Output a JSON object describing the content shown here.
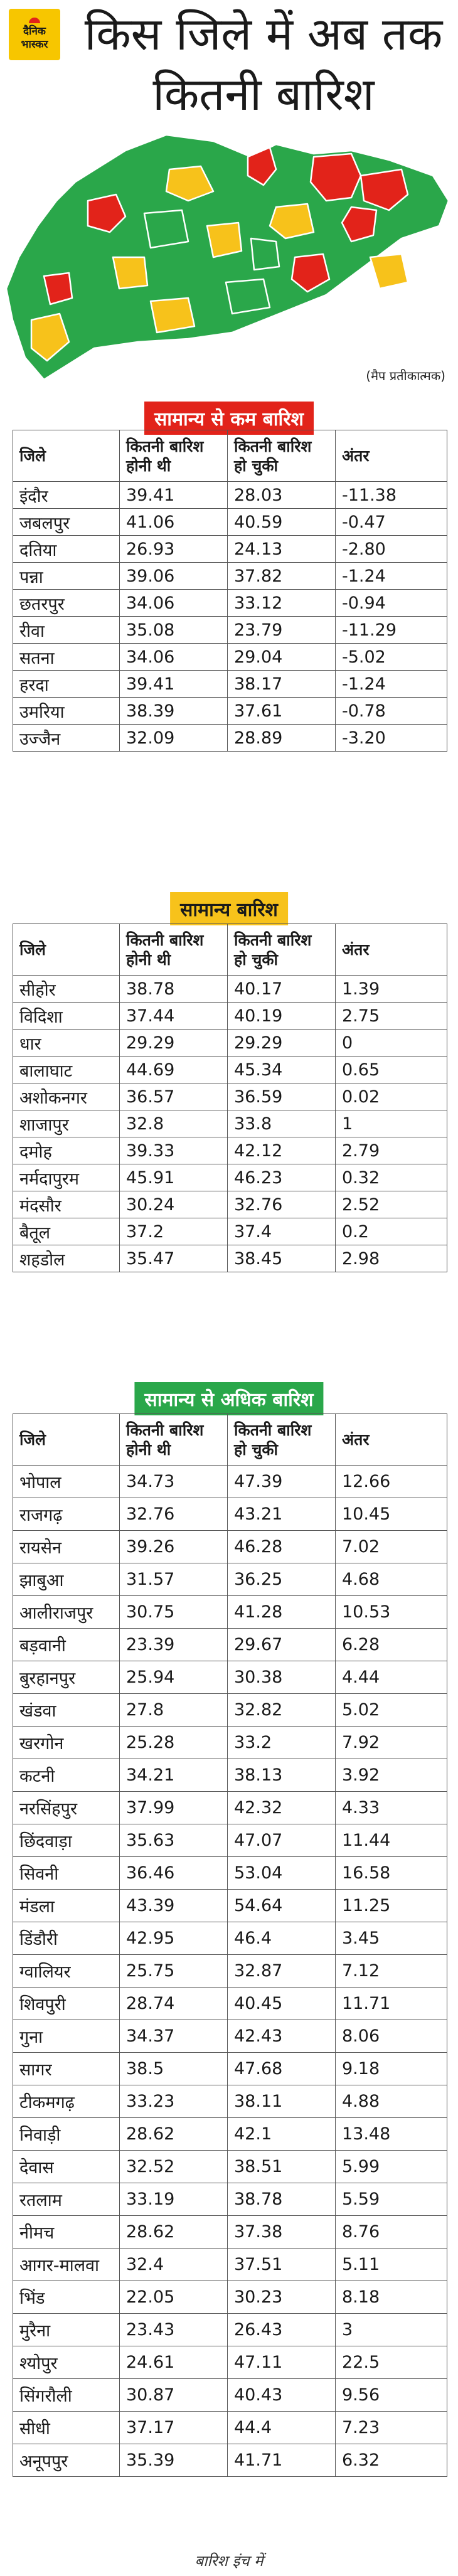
{
  "header": {
    "logo_line1": "दैनिक",
    "logo_line2": "भास्कर",
    "title": "किस जिले में अब तक कितनी बारिश"
  },
  "map": {
    "note": "(मैप प्रतीकात्मक)",
    "colors": {
      "red": "#e2231a",
      "yellow": "#f7c21b",
      "green": "#2aa74a"
    }
  },
  "columns": {
    "district": "जिले",
    "expected": "कितनी बारिश होनी थी",
    "received": "कितनी बारिश हो चुकी",
    "diff": "अंतर"
  },
  "sections": [
    {
      "title": "सामान्य से कम बारिश",
      "rows": [
        [
          "इंदौर",
          "39.41",
          "28.03",
          "-11.38"
        ],
        [
          "जबलपुर",
          "41.06",
          "40.59",
          "-0.47"
        ],
        [
          "दतिया",
          "26.93",
          "24.13",
          "-2.80"
        ],
        [
          "पन्ना",
          "39.06",
          "37.82",
          "-1.24"
        ],
        [
          "छतरपुर",
          "34.06",
          "33.12",
          "-0.94"
        ],
        [
          "रीवा",
          "35.08",
          "23.79",
          "-11.29"
        ],
        [
          "सतना",
          "34.06",
          "29.04",
          "-5.02"
        ],
        [
          "हरदा",
          "39.41",
          "38.17",
          "-1.24"
        ],
        [
          "उमरिया",
          "38.39",
          "37.61",
          "-0.78"
        ],
        [
          "उज्जैन",
          "32.09",
          "28.89",
          "-3.20"
        ]
      ]
    },
    {
      "title": "सामान्य बारिश",
      "rows": [
        [
          "सीहोर",
          "38.78",
          "40.17",
          "1.39"
        ],
        [
          "विदिशा",
          "37.44",
          "40.19",
          "2.75"
        ],
        [
          "धार",
          "29.29",
          "29.29",
          "0"
        ],
        [
          "बालाघाट",
          "44.69",
          "45.34",
          "0.65"
        ],
        [
          "अशोकनगर",
          "36.57",
          "36.59",
          "0.02"
        ],
        [
          "शाजापुर",
          "32.8",
          "33.8",
          "1"
        ],
        [
          "दमोह",
          "39.33",
          "42.12",
          "2.79"
        ],
        [
          "नर्मदापुरम",
          "45.91",
          "46.23",
          "0.32"
        ],
        [
          "मंदसौर",
          "30.24",
          "32.76",
          "2.52"
        ],
        [
          "बैतूल",
          "37.2",
          "37.4",
          "0.2"
        ],
        [
          "शहडोल",
          "35.47",
          "38.45",
          "2.98"
        ]
      ]
    },
    {
      "title": "सामान्य से अधिक बारिश",
      "expected_header": "कितनी बारिश होनी थी",
      "rows": [
        [
          "भोपाल",
          "34.73",
          "47.39",
          "12.66"
        ],
        [
          "राजगढ़",
          "32.76",
          "43.21",
          "10.45"
        ],
        [
          "रायसेन",
          "39.26",
          "46.28",
          "7.02"
        ],
        [
          "झाबुआ",
          "31.57",
          "36.25",
          "4.68"
        ],
        [
          "आलीराजपुर",
          "30.75",
          "41.28",
          "10.53"
        ],
        [
          "बड़वानी",
          "23.39",
          "29.67",
          "6.28"
        ],
        [
          "बुरहानपुर",
          "25.94",
          "30.38",
          "4.44"
        ],
        [
          "खंडवा",
          "27.8",
          "32.82",
          "5.02"
        ],
        [
          "खरगोन",
          "25.28",
          "33.2",
          "7.92"
        ],
        [
          "कटनी",
          "34.21",
          "38.13",
          "3.92"
        ],
        [
          "नरसिंहपुर",
          "37.99",
          "42.32",
          "4.33"
        ],
        [
          "छिंदवाड़ा",
          "35.63",
          "47.07",
          "11.44"
        ],
        [
          "सिवनी",
          "36.46",
          "53.04",
          "16.58"
        ],
        [
          "मंडला",
          "43.39",
          "54.64",
          "11.25"
        ],
        [
          "डिंडौरी",
          "42.95",
          "46.4",
          "3.45"
        ],
        [
          "ग्वालियर",
          "25.75",
          "32.87",
          "7.12"
        ],
        [
          "शिवपुरी",
          "28.74",
          "40.45",
          "11.71"
        ],
        [
          "गुना",
          "34.37",
          "42.43",
          "8.06"
        ],
        [
          "सागर",
          "38.5",
          "47.68",
          "9.18"
        ],
        [
          "टीकमगढ़",
          "33.23",
          "38.11",
          "4.88"
        ],
        [
          "निवाड़ी",
          "28.62",
          "42.1",
          "13.48"
        ],
        [
          "देवास",
          "32.52",
          "38.51",
          "5.99"
        ],
        [
          "रतलाम",
          "33.19",
          "38.78",
          "5.59"
        ],
        [
          "नीमच",
          "28.62",
          "37.38",
          "8.76"
        ],
        [
          "आगर-मालवा",
          "32.4",
          "37.51",
          "5.11"
        ],
        [
          "भिंड",
          "22.05",
          "30.23",
          "8.18"
        ],
        [
          "मुरैना",
          "23.43",
          "26.43",
          "3"
        ],
        [
          "श्योपुर",
          "24.61",
          "47.11",
          "22.5"
        ],
        [
          "सिंगरौली",
          "30.87",
          "40.43",
          "9.56"
        ],
        [
          "सीधी",
          "37.17",
          "44.4",
          "7.23"
        ],
        [
          "अनूपपुर",
          "35.39",
          "41.71",
          "6.32"
        ]
      ]
    }
  ],
  "footer": "बारिश इंच में"
}
